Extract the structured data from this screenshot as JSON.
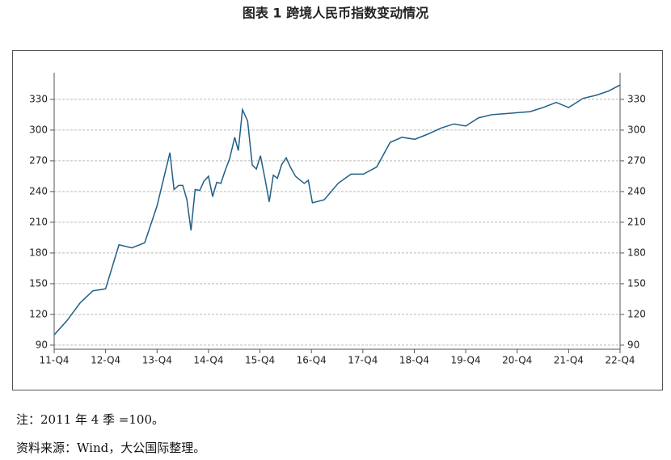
{
  "chart_data": {
    "type": "line",
    "title": "图表 1 跨境人民币指数变动情况",
    "note": "注：2011 年 4 季 =100。",
    "source": "资料来源：Wind，大公国际整理。",
    "x": [
      0,
      0.25,
      0.5,
      0.75,
      1.0,
      1.26,
      1.51,
      1.76,
      2.0,
      2.25,
      2.33,
      2.42,
      2.5,
      2.58,
      2.66,
      2.74,
      2.83,
      2.91,
      3.0,
      3.08,
      3.16,
      3.24,
      3.32,
      3.41,
      3.51,
      3.58,
      3.66,
      3.76,
      3.85,
      3.93,
      4.01,
      4.1,
      4.18,
      4.26,
      4.34,
      4.42,
      4.51,
      4.59,
      4.69,
      4.76,
      4.86,
      4.94,
      5.02,
      5.25,
      5.52,
      5.77,
      6.01,
      6.27,
      6.53,
      6.76,
      7.01,
      7.26,
      7.52,
      7.77,
      8.0,
      8.25,
      8.5,
      8.76,
      9.0,
      9.25,
      9.5,
      9.76,
      10.0,
      10.28,
      10.53,
      10.77,
      11.0
    ],
    "series": [
      {
        "color": "#1f5f86",
        "values": [
          100,
          114,
          131,
          143,
          145,
          188,
          185,
          190,
          226,
          278,
          242,
          246,
          246,
          232,
          202,
          242,
          241,
          250,
          255,
          235,
          249,
          248,
          260,
          272,
          293,
          280,
          320,
          309,
          266,
          262,
          275,
          252,
          230,
          256,
          253,
          266,
          273,
          264,
          255,
          252,
          248,
          251,
          229,
          232,
          248,
          257,
          257,
          264,
          288,
          293,
          291,
          296,
          302,
          306,
          304,
          312,
          315,
          316,
          317,
          318,
          322,
          327,
          322,
          331,
          334,
          338,
          344
        ]
      }
    ],
    "xlim": [
      0,
      11
    ],
    "xticks": [
      {
        "value": 0,
        "label": "11-Q4"
      },
      {
        "value": 1,
        "label": "12-Q4"
      },
      {
        "value": 2,
        "label": "13-Q4"
      },
      {
        "value": 3,
        "label": "14-Q4"
      },
      {
        "value": 4,
        "label": "15-Q4"
      },
      {
        "value": 5,
        "label": "16-Q4"
      },
      {
        "value": 6,
        "label": "17-Q4"
      },
      {
        "value": 7,
        "label": "18-Q4"
      },
      {
        "value": 8,
        "label": "19-Q4"
      },
      {
        "value": 9,
        "label": "20-Q4"
      },
      {
        "value": 10,
        "label": "21-Q4"
      },
      {
        "value": 11,
        "label": "22-Q4"
      }
    ],
    "ylim": [
      86,
      356
    ],
    "yticks": [
      90,
      120,
      150,
      180,
      210,
      240,
      270,
      300,
      330
    ],
    "y2lim": [
      86,
      356
    ],
    "y2ticks": [
      90,
      120,
      150,
      180,
      210,
      240,
      270,
      300,
      330
    ],
    "grid": true
  }
}
